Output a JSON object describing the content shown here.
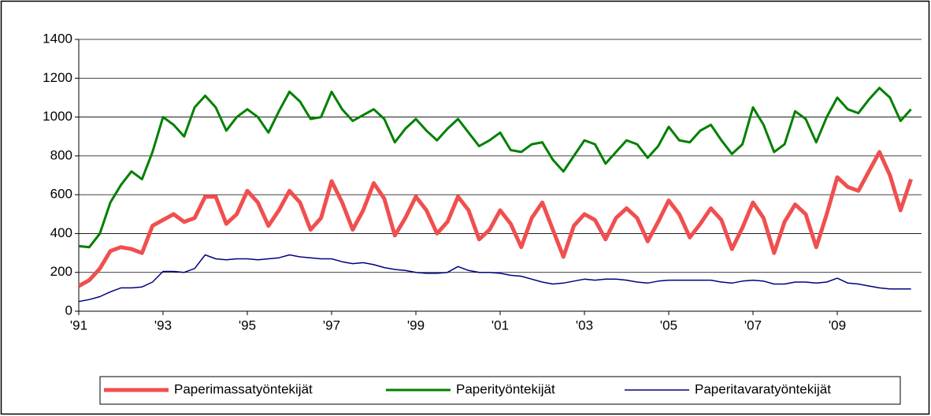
{
  "chart_data": {
    "type": "line",
    "x": [
      1991,
      1991.25,
      1991.5,
      1991.75,
      1992,
      1992.25,
      1992.5,
      1992.75,
      1993,
      1993.25,
      1993.5,
      1993.75,
      1994,
      1994.25,
      1994.5,
      1994.75,
      1995,
      1995.25,
      1995.5,
      1995.75,
      1996,
      1996.25,
      1996.5,
      1996.75,
      1997,
      1997.25,
      1997.5,
      1997.75,
      1998,
      1998.25,
      1998.5,
      1998.75,
      1999,
      1999.25,
      1999.5,
      1999.75,
      2000,
      2000.25,
      2000.5,
      2000.75,
      2001,
      2001.25,
      2001.5,
      2001.75,
      2002,
      2002.25,
      2002.5,
      2002.75,
      2003,
      2003.25,
      2003.5,
      2003.75,
      2004,
      2004.25,
      2004.5,
      2004.75,
      2005,
      2005.25,
      2005.5,
      2005.75,
      2006,
      2006.25,
      2006.5,
      2006.75,
      2007,
      2007.25,
      2007.5,
      2007.75,
      2008,
      2008.25,
      2008.5,
      2008.75,
      2009,
      2009.25,
      2009.5,
      2009.75,
      2010,
      2010.25,
      2010.5,
      2010.75
    ],
    "series": [
      {
        "name": "Paperimassatyöntekijät",
        "color": "#f04f4f",
        "width": 5,
        "values": [
          130,
          160,
          220,
          310,
          330,
          320,
          300,
          440,
          470,
          500,
          460,
          480,
          590,
          590,
          450,
          500,
          620,
          560,
          440,
          520,
          620,
          560,
          420,
          480,
          670,
          560,
          420,
          520,
          660,
          580,
          390,
          480,
          590,
          520,
          400,
          460,
          590,
          520,
          370,
          420,
          520,
          450,
          330,
          480,
          560,
          420,
          280,
          440,
          500,
          470,
          370,
          480,
          530,
          480,
          360,
          460,
          570,
          500,
          380,
          450,
          530,
          470,
          320,
          430,
          560,
          480,
          300,
          460,
          550,
          500,
          330,
          500,
          690,
          640,
          620,
          720,
          820,
          700,
          520,
          680
        ]
      },
      {
        "name": "Paperityöntekijät",
        "color": "#008000",
        "width": 3,
        "values": [
          335,
          330,
          400,
          560,
          650,
          720,
          680,
          820,
          1000,
          960,
          900,
          1050,
          1110,
          1050,
          930,
          1000,
          1040,
          1000,
          920,
          1030,
          1130,
          1080,
          990,
          1000,
          1130,
          1040,
          980,
          1010,
          1040,
          990,
          870,
          940,
          990,
          930,
          880,
          940,
          990,
          920,
          850,
          880,
          920,
          830,
          820,
          860,
          870,
          780,
          720,
          800,
          880,
          860,
          760,
          820,
          880,
          860,
          790,
          850,
          950,
          880,
          870,
          930,
          960,
          880,
          810,
          860,
          1050,
          960,
          820,
          860,
          1030,
          990,
          870,
          1000,
          1100,
          1040,
          1020,
          1090,
          1150,
          1100,
          980,
          1040
        ]
      },
      {
        "name": "Paperitavaratyöntekijät",
        "color": "#000080",
        "width": 1.5,
        "values": [
          50,
          60,
          75,
          100,
          120,
          120,
          125,
          150,
          205,
          205,
          200,
          220,
          290,
          270,
          265,
          270,
          270,
          265,
          270,
          275,
          290,
          280,
          275,
          270,
          270,
          255,
          245,
          250,
          240,
          225,
          215,
          210,
          200,
          195,
          195,
          200,
          230,
          210,
          200,
          200,
          195,
          185,
          180,
          165,
          150,
          140,
          145,
          155,
          165,
          160,
          165,
          165,
          160,
          150,
          145,
          155,
          160,
          160,
          160,
          160,
          160,
          150,
          145,
          155,
          160,
          155,
          140,
          140,
          150,
          150,
          145,
          150,
          170,
          145,
          140,
          130,
          120,
          115,
          115,
          115
        ]
      }
    ],
    "xlim": [
      1991,
      2011
    ],
    "xticks": [
      {
        "value": 1991,
        "label": "'91"
      },
      {
        "value": 1993,
        "label": "'93"
      },
      {
        "value": 1995,
        "label": "'95"
      },
      {
        "value": 1997,
        "label": "'97"
      },
      {
        "value": 1999,
        "label": "'99"
      },
      {
        "value": 2001,
        "label": "'01"
      },
      {
        "value": 2003,
        "label": "'03"
      },
      {
        "value": 2005,
        "label": "'05"
      },
      {
        "value": 2007,
        "label": "'07"
      },
      {
        "value": 2009,
        "label": "'09"
      }
    ],
    "ylim": [
      0,
      1400
    ],
    "yticks": [
      0,
      200,
      400,
      600,
      800,
      1000,
      1200,
      1400
    ],
    "grid": true,
    "legend": "bottom"
  }
}
